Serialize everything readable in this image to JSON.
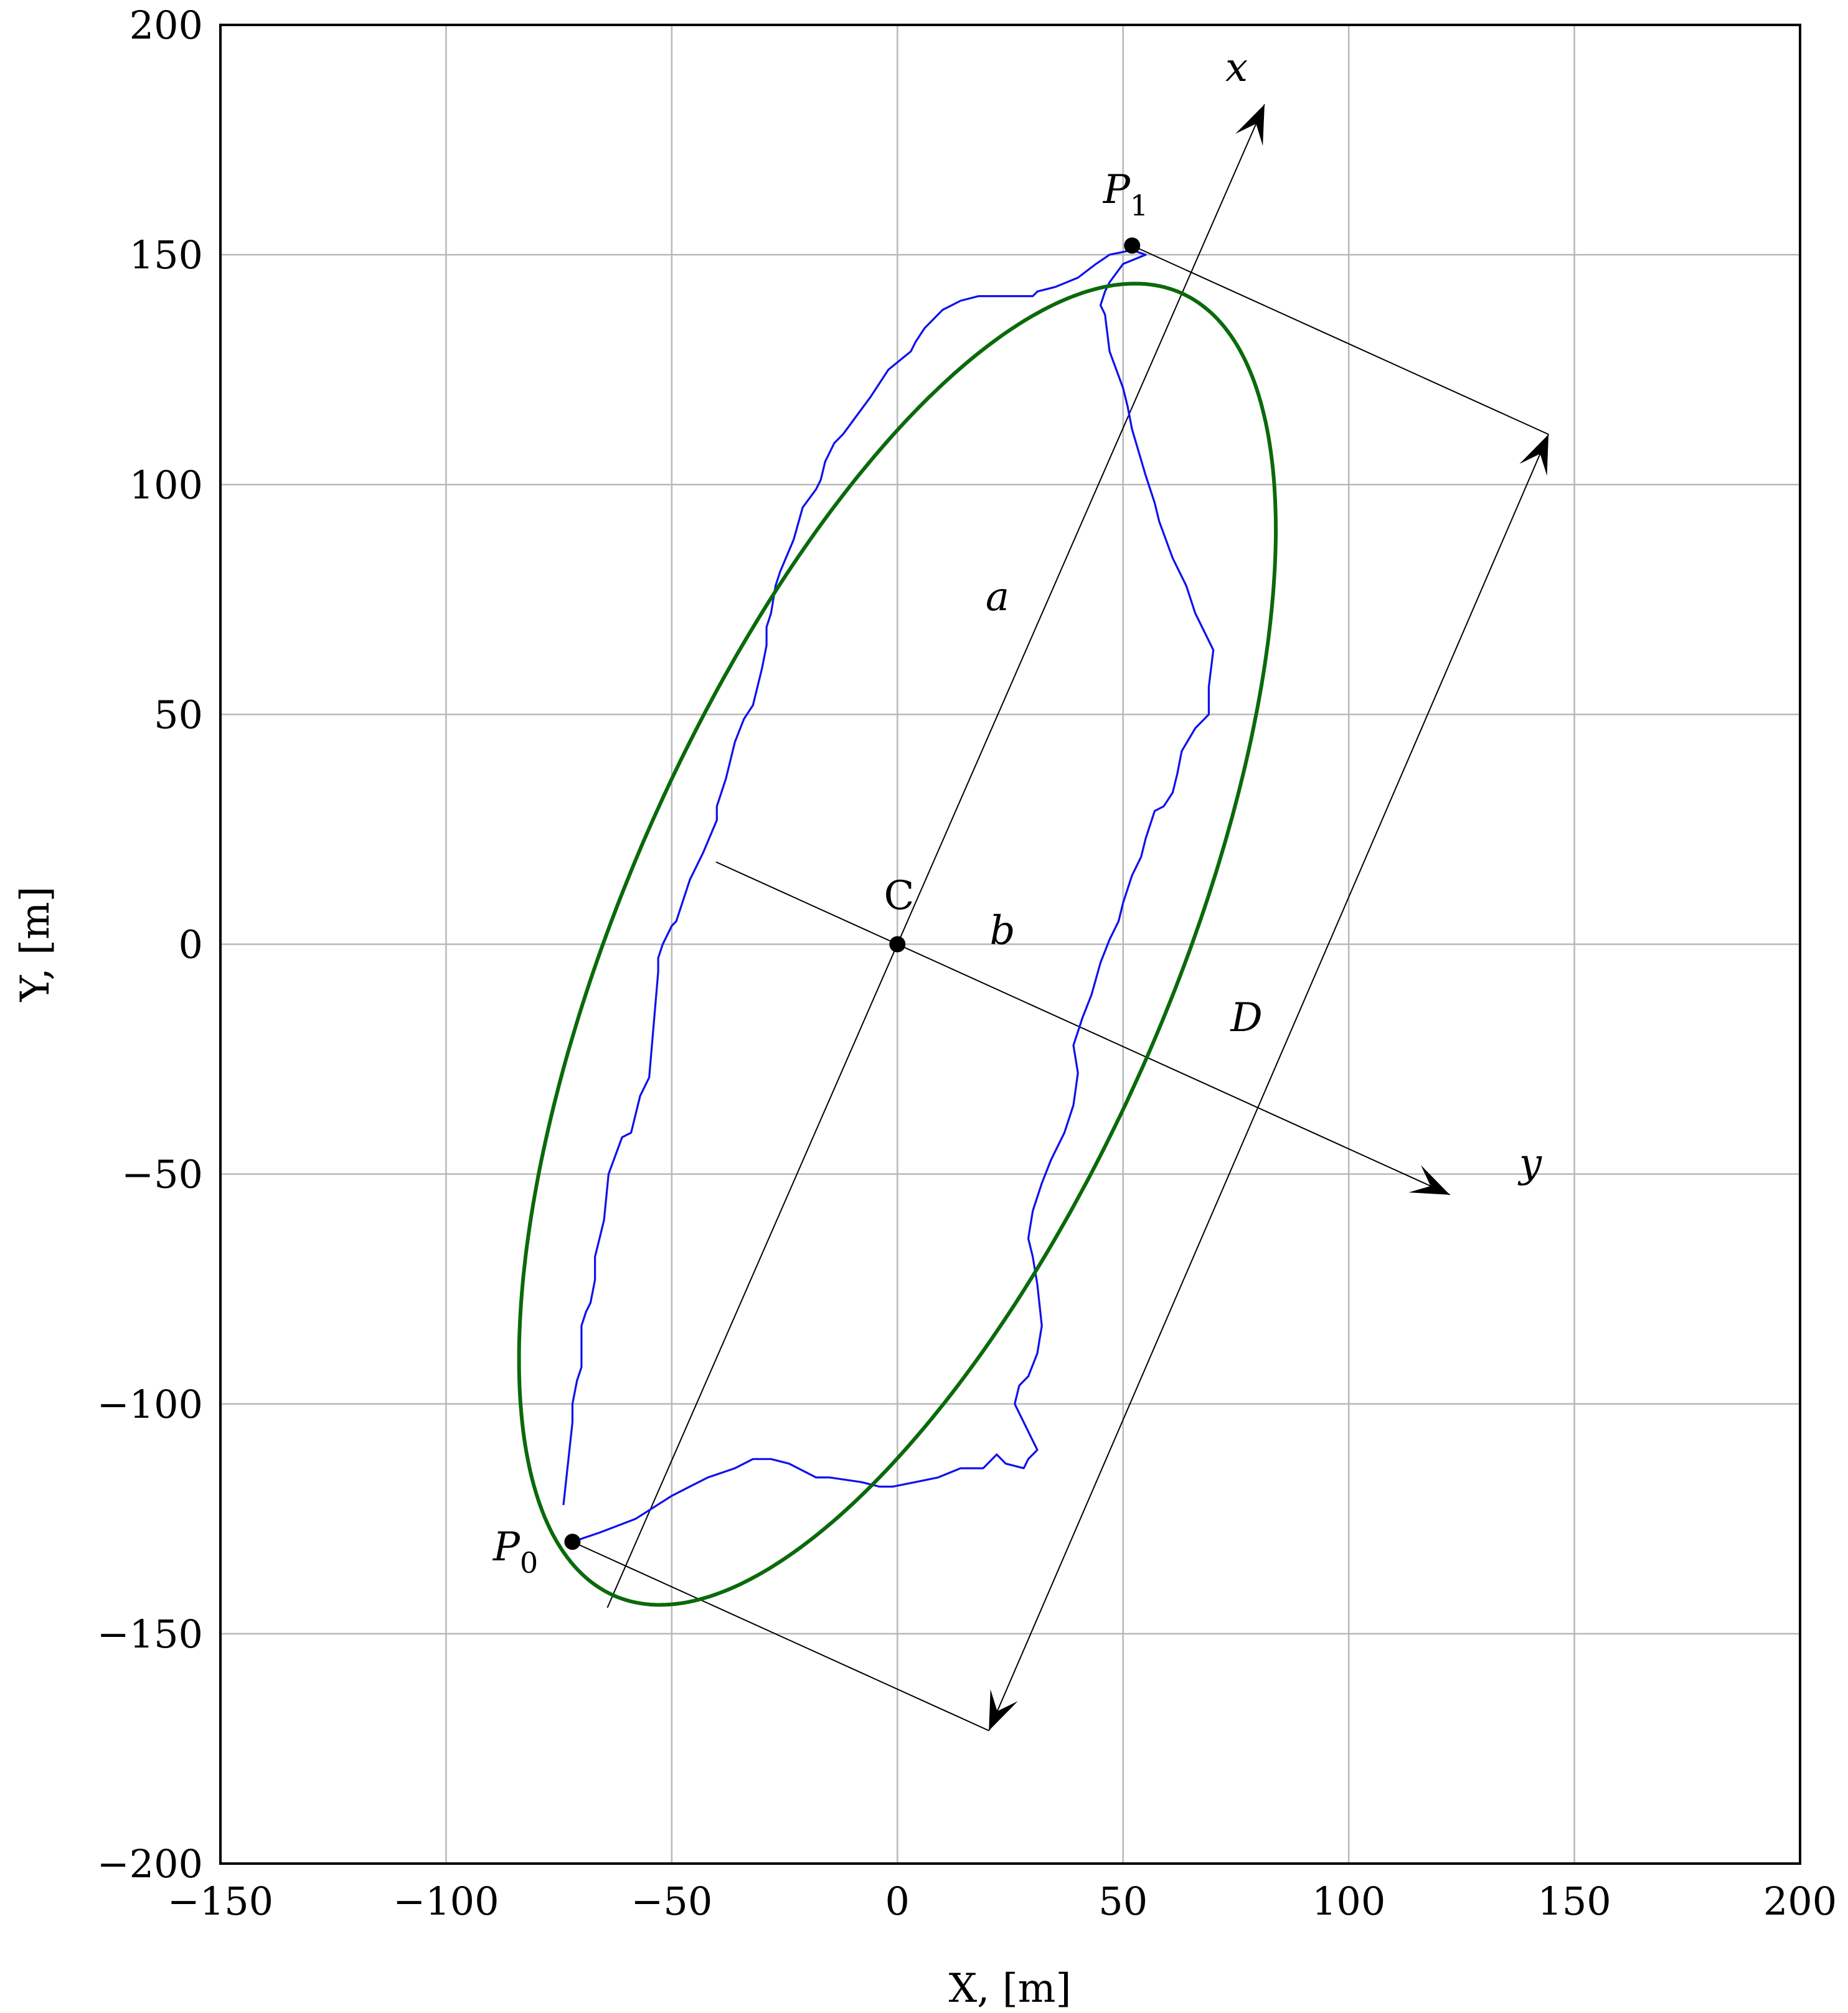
{
  "chart_data": {
    "type": "line",
    "xlabel": "X, [m]",
    "ylabel": "Y, [m]",
    "xlim": [
      -150,
      200
    ],
    "ylim": [
      -200,
      200
    ],
    "xticks": [
      -150,
      -100,
      -50,
      0,
      50,
      100,
      150,
      200
    ],
    "yticks": [
      -200,
      -150,
      -100,
      -50,
      0,
      50,
      100,
      150,
      200
    ],
    "xtick_labels": [
      "−150",
      "−100",
      "−50",
      "0",
      "50",
      "100",
      "150",
      "200"
    ],
    "ytick_labels": [
      "−200",
      "−150",
      "−100",
      "−50",
      "0",
      "50",
      "100",
      "150",
      "200"
    ],
    "grid": true,
    "colors": {
      "trajectory": "#1010ee",
      "ellipse": "#0a6a0a",
      "frame": "#000000",
      "grid": "#b8b8b8"
    },
    "trajectory": {
      "x": [
        -72,
        -66,
        -58,
        -50,
        -46,
        -42,
        -36,
        -32,
        -28,
        -24,
        -18,
        -15,
        -8,
        -4,
        -1,
        4,
        9,
        14,
        18,
        19,
        20,
        22,
        24,
        28,
        29,
        31,
        30,
        28,
        26,
        27,
        29,
        31,
        32,
        31,
        30,
        29,
        30,
        32,
        34,
        37,
        39,
        40,
        39,
        41,
        43,
        45,
        47,
        49,
        50,
        52,
        54,
        55,
        57,
        59,
        61,
        62,
        63,
        66,
        68,
        69,
        69,
        69,
        70,
        68,
        66,
        64,
        61,
        58,
        57,
        55,
        52,
        51,
        50,
        47,
        46,
        45,
        46,
        47,
        50,
        55,
        52,
        47,
        44,
        40,
        35,
        31,
        30,
        24,
        18,
        14,
        10,
        8,
        6,
        4,
        3,
        -2,
        -6,
        -9,
        -12,
        -14,
        -16,
        -17,
        -18,
        -21,
        -23,
        -26,
        -27,
        -28,
        -29,
        -29,
        -30,
        -32,
        -34,
        -36,
        -38,
        -40,
        -40,
        -43,
        -46,
        -48,
        -49,
        -50,
        -52,
        -53,
        -53,
        -55,
        -57,
        -59,
        -61,
        -64,
        -65,
        -66,
        -67,
        -67,
        -68,
        -69,
        -70,
        -70,
        -71,
        -72,
        -72,
        -74
      ],
      "y": [
        -130,
        -128,
        -125,
        -120,
        -118,
        -116,
        -114,
        -112,
        -112,
        -113,
        -116,
        -116,
        -117,
        -118,
        -118,
        -117,
        -116,
        -114,
        -114,
        -114,
        -113,
        -111,
        -113,
        -114,
        -112,
        -110,
        -108,
        -104,
        -100,
        -96,
        -94,
        -89,
        -83,
        -74,
        -68,
        -64,
        -58,
        -52,
        -47,
        -41,
        -35,
        -28,
        -22,
        -16,
        -11,
        -4,
        1,
        5,
        9,
        15,
        19,
        23,
        29,
        30,
        33,
        37,
        42,
        47,
        49,
        50,
        52,
        56,
        64,
        68,
        72,
        78,
        84,
        92,
        96,
        102,
        112,
        117,
        121,
        129,
        137,
        139,
        142,
        144,
        148,
        150,
        151,
        150,
        148,
        145,
        143,
        142,
        141,
        141,
        141,
        140,
        138,
        136,
        134,
        131,
        129,
        125,
        119,
        115,
        111,
        109,
        105,
        101,
        99,
        95,
        88,
        81,
        78,
        72,
        69,
        65,
        60,
        52,
        49,
        44,
        36,
        30,
        27,
        20,
        14,
        8,
        5,
        4,
        0,
        -3,
        -6,
        -29,
        -33,
        -41,
        -42,
        -50,
        -60,
        -64,
        -68,
        -73,
        -78,
        -80,
        -83,
        -92,
        -95,
        -100,
        -104,
        -122
      ]
    },
    "ellipse": {
      "center": [
        0,
        0
      ],
      "semi_major": 155,
      "semi_minor": 60.5,
      "angle_deg": 66
    },
    "points": [
      {
        "label": "C",
        "x": 0,
        "y": 0
      },
      {
        "label": "P0",
        "x": -72,
        "y": -130
      },
      {
        "label": "P1",
        "x": 52,
        "y": 152
      }
    ],
    "annotations": {
      "x_axis_label": "x",
      "y_axis_label": "y",
      "a_label": "a",
      "b_label": "b",
      "D_label": "D",
      "C_label": "C",
      "P0_label": "P",
      "P0_sub": "0",
      "P1_label": "P",
      "P1_sub": "1"
    }
  }
}
